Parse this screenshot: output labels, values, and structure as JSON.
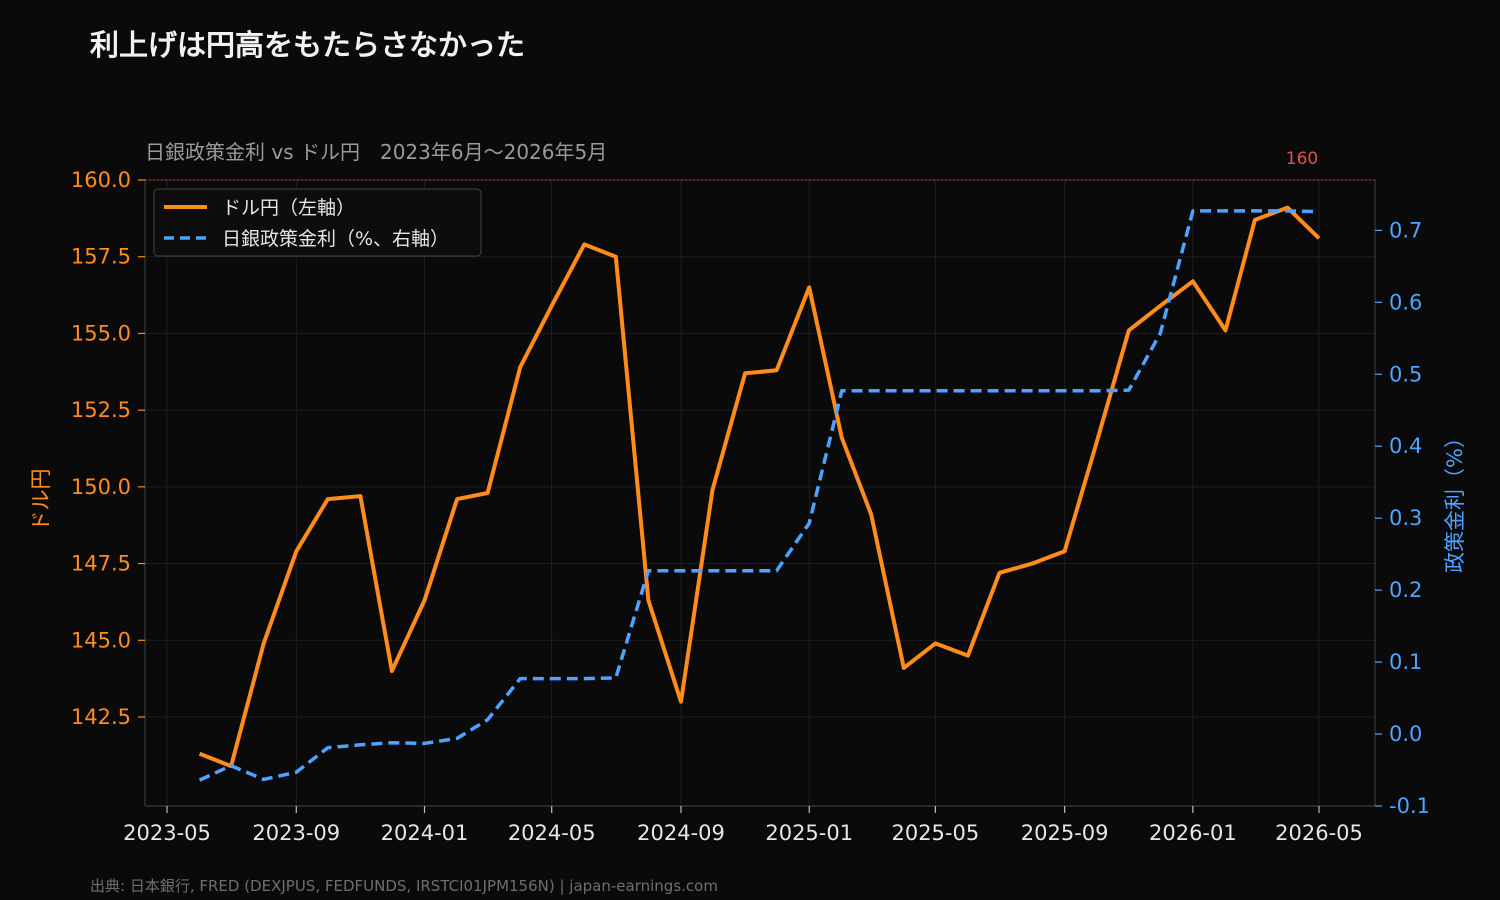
{
  "title": "利上げは円高をもたらさなかった",
  "source": "出典: 日本銀行, FRED (DEXJPUS, FEDFUNDS, IRSTCI01JPM156N) | japan-earnings.com",
  "colors": {
    "usdjpy": "#ff8c1a",
    "policy_rate": "#4da3ff",
    "reference_line": "#e05050",
    "background": "#0a0a0a"
  },
  "chart_data": {
    "type": "line",
    "title": "日銀政策金利 vs ドル円　2023年6月～2026年5月",
    "x": [
      "2023-06",
      "2023-07",
      "2023-08",
      "2023-09",
      "2023-10",
      "2023-11",
      "2023-12",
      "2024-01",
      "2024-02",
      "2024-03",
      "2024-04",
      "2024-05",
      "2024-06",
      "2024-07",
      "2024-08",
      "2024-09",
      "2024-10",
      "2024-11",
      "2024-12",
      "2025-01",
      "2025-02",
      "2025-03",
      "2025-04",
      "2025-05",
      "2025-06",
      "2025-07",
      "2025-08",
      "2025-09",
      "2025-10",
      "2025-11",
      "2025-12",
      "2026-01",
      "2026-02",
      "2026-03",
      "2026-04",
      "2026-05"
    ],
    "series": [
      {
        "name": "ドル円（左軸）",
        "axis": "left",
        "style": "solid",
        "values": [
          141.3,
          140.9,
          144.9,
          147.9,
          149.6,
          149.7,
          144.0,
          146.3,
          149.6,
          149.8,
          153.9,
          155.9,
          157.9,
          157.5,
          146.3,
          143.0,
          149.9,
          153.7,
          153.8,
          156.5,
          151.6,
          149.1,
          144.1,
          144.9,
          144.5,
          147.2,
          147.5,
          147.9,
          151.4,
          155.1,
          155.9,
          156.7,
          155.1,
          158.7,
          159.1,
          158.1
        ]
      },
      {
        "name": "日銀政策金利（%、右軸）",
        "axis": "right",
        "style": "dashed",
        "values": [
          -0.064,
          -0.044,
          -0.063,
          -0.053,
          -0.019,
          -0.015,
          -0.012,
          -0.013,
          -0.006,
          0.02,
          0.077,
          0.077,
          0.077,
          0.078,
          0.227,
          0.227,
          0.227,
          0.227,
          0.227,
          0.293,
          0.477,
          0.477,
          0.477,
          0.477,
          0.477,
          0.477,
          0.477,
          0.477,
          0.477,
          0.478,
          0.557,
          0.727,
          0.727,
          0.727,
          0.727,
          0.726
        ]
      }
    ],
    "xlabel": "",
    "ylabel": "ドル円",
    "ylabel_right": "政策金利（%）",
    "ylim": [
      139.6,
      160.0
    ],
    "ylim_right": [
      -0.1,
      0.77
    ],
    "x_ticks": [
      "2023-05",
      "2023-09",
      "2024-01",
      "2024-05",
      "2024-09",
      "2025-01",
      "2025-05",
      "2025-09",
      "2026-01",
      "2026-05"
    ],
    "y_ticks": [
      142.5,
      145.0,
      147.5,
      150.0,
      152.5,
      155.0,
      157.5,
      160.0
    ],
    "y_tick_labels": [
      "142.5",
      "145.0",
      "147.5",
      "150.0",
      "152.5",
      "155.0",
      "157.5",
      "160.0"
    ],
    "y_right_ticks": [
      -0.1,
      0.0,
      0.1,
      0.2,
      0.3,
      0.4,
      0.5,
      0.6,
      0.7
    ],
    "y_right_tick_labels": [
      "-0.1",
      "0.0",
      "0.1",
      "0.2",
      "0.3",
      "0.4",
      "0.5",
      "0.6",
      "0.7"
    ],
    "reference_line": {
      "value": 160,
      "label": "160"
    },
    "grid": true,
    "legend_position": "top-left"
  }
}
